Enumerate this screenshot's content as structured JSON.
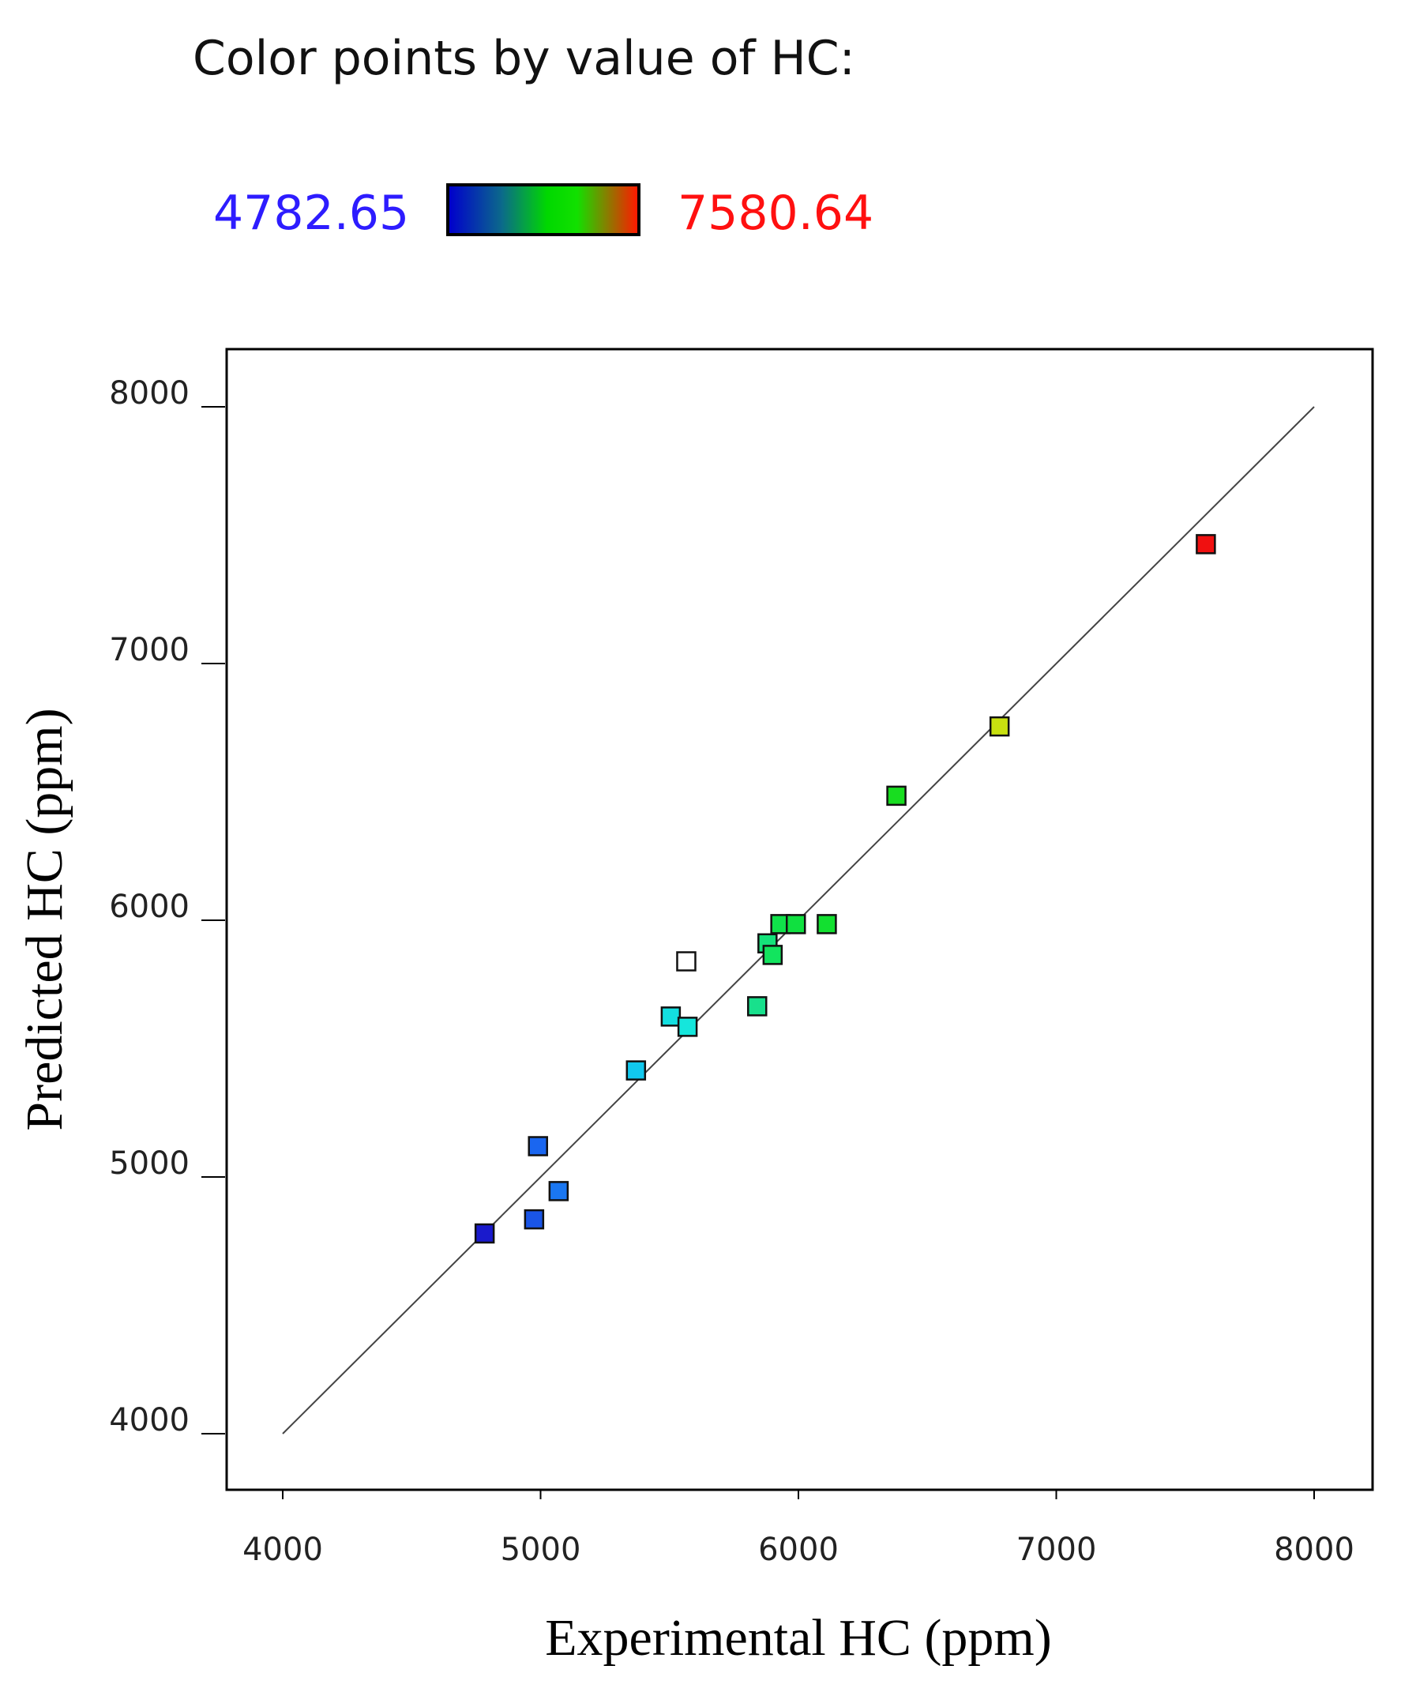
{
  "legend": {
    "title": "Color points by value of HC:",
    "min_label": "4782.65",
    "max_label": "7580.64"
  },
  "chart_data": {
    "type": "scatter",
    "xlabel": "Experimental HC (ppm)",
    "ylabel": "Predicted HC (ppm)",
    "xlim": [
      4000,
      8000
    ],
    "ylim": [
      4000,
      8000
    ],
    "xticks": [
      "4000",
      "5000",
      "6000",
      "7000",
      "8000"
    ],
    "yticks": [
      "4000",
      "5000",
      "6000",
      "7000",
      "8000"
    ],
    "reference_line": [
      [
        4000,
        4000
      ],
      [
        8000,
        8000
      ]
    ],
    "points": [
      {
        "x": 4783,
        "y": 4780,
        "color": "#1a1acc"
      },
      {
        "x": 4975,
        "y": 4835,
        "color": "#1a55e6"
      },
      {
        "x": 4990,
        "y": 5120,
        "color": "#1a66f0"
      },
      {
        "x": 5070,
        "y": 4945,
        "color": "#1a77f2"
      },
      {
        "x": 5370,
        "y": 5415,
        "color": "#11c8ee"
      },
      {
        "x": 5505,
        "y": 5625,
        "color": "#13dfe0"
      },
      {
        "x": 5565,
        "y": 5840,
        "color": "#ffffff"
      },
      {
        "x": 5570,
        "y": 5585,
        "color": "#15e6dc"
      },
      {
        "x": 5840,
        "y": 5665,
        "color": "#18e08c"
      },
      {
        "x": 5880,
        "y": 5910,
        "color": "#15e27a"
      },
      {
        "x": 5900,
        "y": 5865,
        "color": "#12e45e"
      },
      {
        "x": 5930,
        "y": 5985,
        "color": "#10e24a"
      },
      {
        "x": 5990,
        "y": 5985,
        "color": "#10e040"
      },
      {
        "x": 6110,
        "y": 5985,
        "color": "#12e030"
      },
      {
        "x": 6380,
        "y": 6485,
        "color": "#18dd20"
      },
      {
        "x": 6780,
        "y": 6755,
        "color": "#c8e010"
      },
      {
        "x": 7580,
        "y": 7465,
        "color": "#f01010"
      }
    ]
  }
}
